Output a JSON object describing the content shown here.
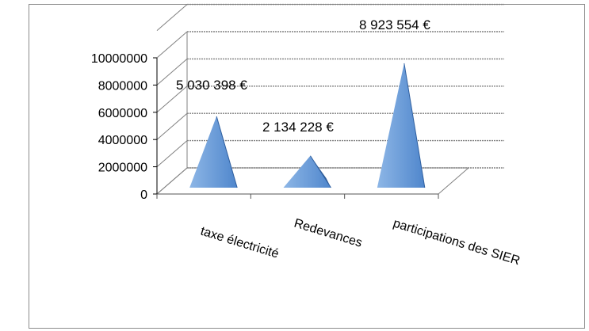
{
  "chart_data": {
    "type": "bar",
    "style": "3d-pyramid",
    "categories": [
      "taxe électricité",
      "Redevances",
      "participations des SIER"
    ],
    "values": [
      5030398,
      2134228,
      8923554
    ],
    "data_labels": [
      "5 030 398 €",
      "2 134 228 €",
      "8 923 554 €"
    ],
    "y_ticks": [
      "0",
      "2000000",
      "4000000",
      "6000000",
      "8000000",
      "10000000"
    ],
    "ylim": [
      0,
      10000000
    ],
    "grid": true,
    "colors": {
      "pyramid_light": "#7fa9dd",
      "pyramid_mid": "#5b8fd1",
      "pyramid_dark": "#2f5f9f",
      "grid": "#808080"
    }
  }
}
